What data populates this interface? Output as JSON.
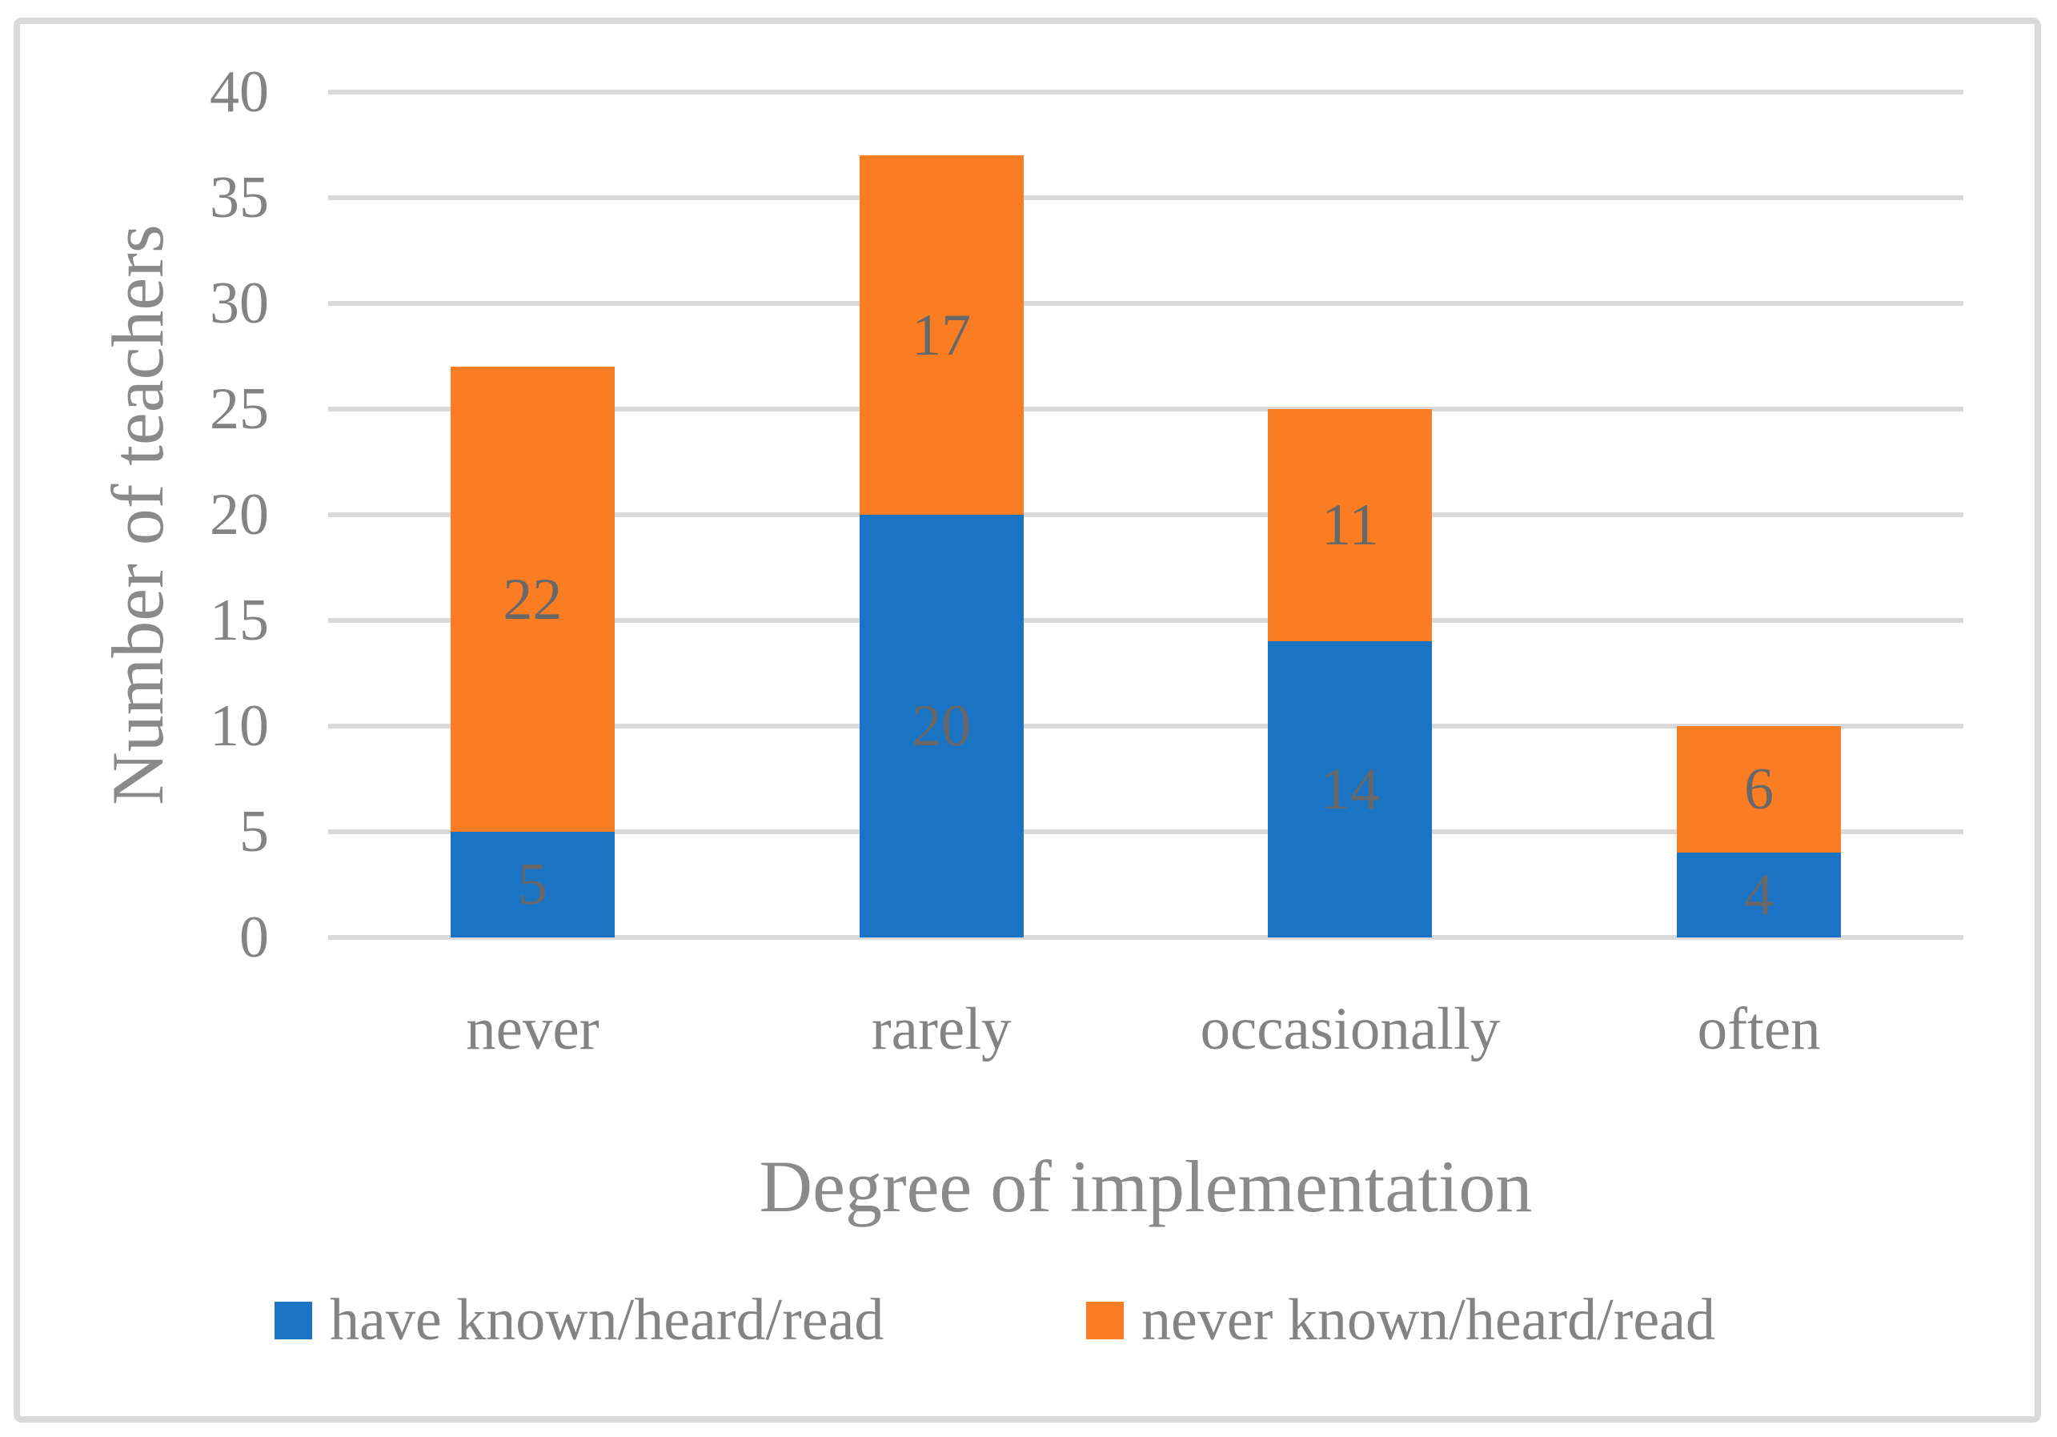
{
  "chart_data": {
    "type": "bar",
    "stacked": true,
    "title": "",
    "xlabel": "Degree of implementation",
    "ylabel": "Number of teachers",
    "categories": [
      "never",
      "rarely",
      "occasionally",
      "often"
    ],
    "series": [
      {
        "name": "have known/heard/read",
        "color": "#1B73C4",
        "values": [
          5,
          20,
          14,
          4
        ]
      },
      {
        "name": "never known/heard/read",
        "color": "#FB7D23",
        "values": [
          22,
          17,
          11,
          6
        ]
      }
    ],
    "ylim": [
      0,
      40
    ],
    "yticks": [
      0,
      5,
      10,
      15,
      20,
      25,
      30,
      35,
      40
    ],
    "grid": true,
    "gridline_color": "#D9D9D9",
    "frame_color": "#D9D9D9",
    "axis_text_color": "#838383",
    "data_label_color": "#686868",
    "legend_position": "bottom",
    "data_labels": true
  }
}
